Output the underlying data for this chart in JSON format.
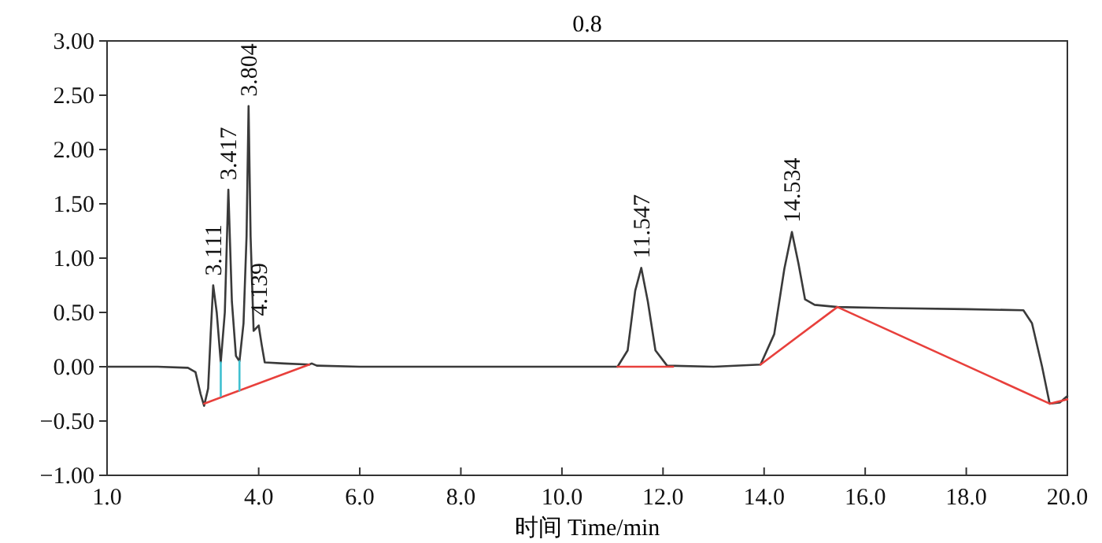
{
  "chart_data": {
    "type": "line",
    "xlabel": "时间  Time/min",
    "xlim": [
      1,
      20
    ],
    "ylim": [
      -1,
      3
    ],
    "xticks": [
      {
        "value": 1,
        "label": "1.0"
      },
      {
        "value": 4,
        "label": "4.0"
      },
      {
        "value": 6,
        "label": "6.0"
      },
      {
        "value": 8,
        "label": "8.0"
      },
      {
        "value": 10,
        "label": "10.0"
      },
      {
        "value": 12,
        "label": "12.0"
      },
      {
        "value": 14,
        "label": "14.0"
      },
      {
        "value": 16,
        "label": "16.0"
      },
      {
        "value": 18,
        "label": "18.0"
      },
      {
        "value": 20,
        "label": "20.0"
      }
    ],
    "yticks": [
      {
        "value": -1,
        "label": "−1.00"
      },
      {
        "value": -0.5,
        "label": "−0.50"
      },
      {
        "value": 0,
        "label": "0.00"
      },
      {
        "value": 0.5,
        "label": "0.50"
      },
      {
        "value": 1,
        "label": "1.00"
      },
      {
        "value": 1.5,
        "label": "1.50"
      },
      {
        "value": 2,
        "label": "2.00"
      },
      {
        "value": 2.5,
        "label": "2.50"
      },
      {
        "value": 3,
        "label": "3.00"
      }
    ],
    "series": [
      {
        "color": "#3a3a3a",
        "x": [
          1.0,
          2.0,
          2.6,
          2.75,
          2.85,
          2.92,
          3.0,
          3.05,
          3.1,
          3.17,
          3.25,
          3.33,
          3.4,
          3.47,
          3.55,
          3.62,
          3.7,
          3.76,
          3.8,
          3.84,
          3.9,
          4.0,
          4.06,
          4.12,
          4.5,
          5.0,
          5.05,
          5.15,
          6,
          8,
          10,
          11.1,
          11.3,
          11.45,
          11.57,
          11.7,
          11.85,
          12.08,
          13,
          13.93,
          14.2,
          14.4,
          14.55,
          14.68,
          14.81,
          15.0,
          15.45,
          16.5,
          18.0,
          19.13,
          19.3,
          19.5,
          19.65,
          19.85,
          20.0
        ],
        "values": [
          0,
          0,
          -0.01,
          -0.05,
          -0.25,
          -0.36,
          -0.2,
          0.3,
          0.75,
          0.5,
          0.04,
          0.5,
          1.63,
          0.6,
          0.1,
          0.05,
          0.4,
          1.2,
          2.4,
          1.2,
          0.33,
          0.38,
          0.2,
          0.04,
          0.03,
          0.02,
          0.03,
          0.01,
          0,
          0,
          0,
          0,
          0.15,
          0.7,
          0.91,
          0.6,
          0.15,
          0.01,
          0,
          0.02,
          0.3,
          0.9,
          1.24,
          0.95,
          0.62,
          0.57,
          0.55,
          0.54,
          0.53,
          0.52,
          0.4,
          0.0,
          -0.34,
          -0.33,
          -0.27
        ]
      },
      {
        "color": "#e8403c",
        "x": [
          2.92,
          5.0,
          5.01,
          11.1,
          12.2,
          12.21,
          13.93,
          15.45,
          19.65,
          20.0
        ],
        "values": [
          -0.34,
          0.02,
          null,
          0.0,
          0.0,
          null,
          0.02,
          0.55,
          -0.34,
          -0.3
        ]
      },
      {
        "color": "#40c0d0",
        "x": [
          3.25,
          3.25,
          3.26,
          3.62,
          3.62
        ],
        "values": [
          0.04,
          -0.27,
          null,
          0.05,
          -0.22
        ]
      }
    ],
    "annotations": [
      "0.8",
      {
        "text": "3.111",
        "x": 3.1,
        "y": 0.75
      },
      {
        "text": "3.417",
        "x": 3.4,
        "y": 1.63
      },
      {
        "text": "3.804",
        "x": 3.8,
        "y": 2.4
      },
      {
        "text": "4.139",
        "x": 4.0,
        "y": 0.38
      },
      {
        "text": "11.547",
        "x": 11.57,
        "y": 0.91
      },
      {
        "text": "14.534",
        "x": 14.55,
        "y": 1.24
      }
    ]
  }
}
